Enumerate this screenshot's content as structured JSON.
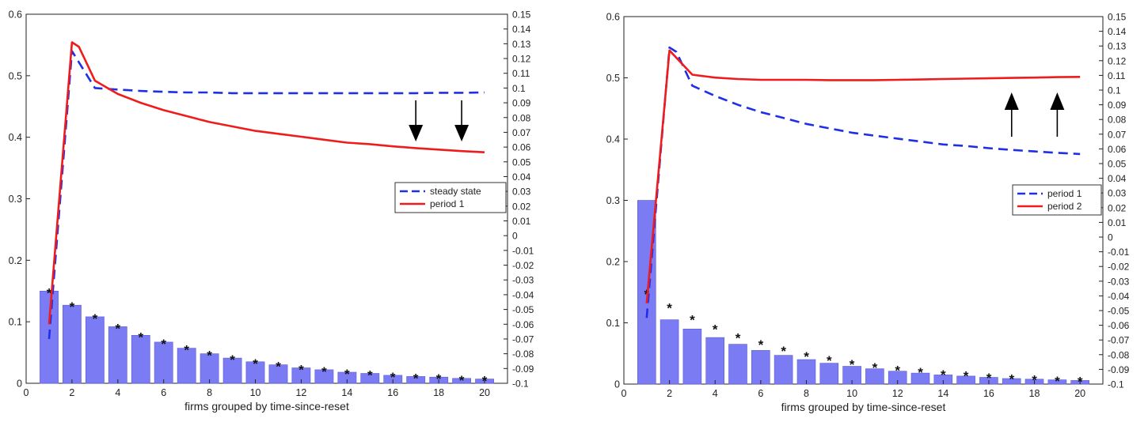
{
  "chart_data": [
    {
      "type": "bar",
      "xlabel": "firms grouped by time-since-reset",
      "xlim": [
        0,
        21
      ],
      "xticks": [
        0,
        2,
        4,
        6,
        8,
        10,
        12,
        14,
        16,
        18,
        20
      ],
      "ylim": [
        0,
        0.6
      ],
      "yticks": [
        0,
        0.1,
        0.2,
        0.3,
        0.4,
        0.5,
        0.6
      ],
      "y2lim": [
        -0.1,
        0.15
      ],
      "y2ticks": [
        -0.1,
        -0.09,
        -0.08,
        -0.07,
        -0.06,
        -0.05,
        -0.04,
        -0.03,
        -0.02,
        -0.01,
        0,
        0.01,
        0.02,
        0.03,
        0.04,
        0.05,
        0.06,
        0.07,
        0.08,
        0.09,
        0.1,
        0.11,
        0.12,
        0.13,
        0.14,
        0.15
      ],
      "bars": {
        "x": [
          1,
          2,
          3,
          4,
          5,
          6,
          7,
          8,
          9,
          10,
          11,
          12,
          13,
          14,
          15,
          16,
          17,
          18,
          19,
          20
        ],
        "values": [
          0.15,
          0.127,
          0.108,
          0.092,
          0.078,
          0.067,
          0.057,
          0.048,
          0.041,
          0.035,
          0.03,
          0.025,
          0.022,
          0.018,
          0.016,
          0.013,
          0.011,
          0.01,
          0.008,
          0.007
        ],
        "color": "#7b7cf4"
      },
      "markers": {
        "symbol": "*",
        "x": [
          1,
          2,
          3,
          4,
          5,
          6,
          7,
          8,
          9,
          10,
          11,
          12,
          13,
          14,
          15,
          16,
          17,
          18,
          19,
          20
        ],
        "values": [
          0.15,
          0.127,
          0.108,
          0.092,
          0.078,
          0.067,
          0.057,
          0.048,
          0.041,
          0.035,
          0.03,
          0.025,
          0.022,
          0.018,
          0.016,
          0.013,
          0.011,
          0.01,
          0.008,
          0.007
        ]
      },
      "series": [
        {
          "name": "steady state",
          "axis": "right",
          "style": "dashed",
          "color": "#1f2fe6",
          "x": [
            1,
            2,
            3,
            4,
            5,
            6,
            7,
            8,
            9,
            10,
            11,
            12,
            13,
            14,
            15,
            16,
            17,
            18,
            19,
            20
          ],
          "values": [
            -0.07,
            0.125,
            0.1,
            0.099,
            0.098,
            0.0975,
            0.097,
            0.097,
            0.0965,
            0.0965,
            0.0965,
            0.0965,
            0.0965,
            0.0965,
            0.0965,
            0.0965,
            0.0965,
            0.0968,
            0.0968,
            0.097
          ]
        },
        {
          "name": "period 1",
          "axis": "right",
          "style": "solid",
          "color": "#ee1c1c",
          "x": [
            1,
            2,
            2.3,
            3,
            4,
            5,
            6,
            7,
            8,
            9,
            10,
            11,
            12,
            13,
            14,
            15,
            16,
            17,
            18,
            19,
            20
          ],
          "values": [
            -0.06,
            0.131,
            0.128,
            0.105,
            0.096,
            0.09,
            0.085,
            0.081,
            0.077,
            0.074,
            0.071,
            0.069,
            0.067,
            0.065,
            0.063,
            0.062,
            0.0605,
            0.0593,
            0.0583,
            0.0573,
            0.0565
          ]
        }
      ],
      "legend": {
        "position": "center-right"
      },
      "annotations": {
        "arrows": [
          {
            "x": 17,
            "direction": "down"
          },
          {
            "x": 19,
            "direction": "down"
          }
        ]
      }
    },
    {
      "type": "bar",
      "xlabel": "firms grouped by time-since-reset",
      "xlim": [
        0,
        21
      ],
      "xticks": [
        0,
        2,
        4,
        6,
        8,
        10,
        12,
        14,
        16,
        18,
        20
      ],
      "ylim": [
        0,
        0.6
      ],
      "yticks": [
        0,
        0.1,
        0.2,
        0.3,
        0.4,
        0.5,
        0.6
      ],
      "y2lim": [
        -0.1,
        0.15
      ],
      "y2ticks": [
        -0.1,
        -0.09,
        -0.08,
        -0.07,
        -0.06,
        -0.05,
        -0.04,
        -0.03,
        -0.02,
        -0.01,
        0,
        0.01,
        0.02,
        0.03,
        0.04,
        0.05,
        0.06,
        0.07,
        0.08,
        0.09,
        0.1,
        0.11,
        0.12,
        0.13,
        0.14,
        0.15
      ],
      "bars": {
        "x": [
          1,
          2,
          3,
          4,
          5,
          6,
          7,
          8,
          9,
          10,
          11,
          12,
          13,
          14,
          15,
          16,
          17,
          18,
          19,
          20
        ],
        "values": [
          0.3,
          0.105,
          0.09,
          0.076,
          0.065,
          0.055,
          0.047,
          0.04,
          0.034,
          0.029,
          0.025,
          0.021,
          0.018,
          0.015,
          0.013,
          0.011,
          0.009,
          0.008,
          0.007,
          0.006
        ],
        "color": "#7b7cf4"
      },
      "markers": {
        "symbol": "*",
        "x": [
          1,
          2,
          3,
          4,
          5,
          6,
          7,
          8,
          9,
          10,
          11,
          12,
          13,
          14,
          15,
          16,
          17,
          18,
          19,
          20
        ],
        "values": [
          0.15,
          0.127,
          0.108,
          0.092,
          0.078,
          0.067,
          0.057,
          0.048,
          0.041,
          0.035,
          0.03,
          0.025,
          0.022,
          0.018,
          0.016,
          0.013,
          0.011,
          0.01,
          0.008,
          0.007
        ]
      },
      "series": [
        {
          "name": "period 1",
          "axis": "right",
          "style": "dashed",
          "color": "#1f2fe6",
          "x": [
            1,
            2,
            2.3,
            3,
            4,
            5,
            6,
            7,
            8,
            9,
            10,
            11,
            12,
            13,
            14,
            15,
            16,
            17,
            18,
            19,
            20
          ],
          "values": [
            -0.055,
            0.129,
            0.126,
            0.103,
            0.096,
            0.09,
            0.085,
            0.081,
            0.077,
            0.074,
            0.071,
            0.069,
            0.067,
            0.065,
            0.063,
            0.062,
            0.0605,
            0.0593,
            0.0583,
            0.0573,
            0.0565
          ]
        },
        {
          "name": "period 2",
          "axis": "right",
          "style": "solid",
          "color": "#ee1c1c",
          "x": [
            1,
            2,
            3,
            4,
            5,
            6,
            7,
            8,
            9,
            10,
            11,
            12,
            13,
            14,
            15,
            16,
            17,
            18,
            19,
            20
          ],
          "values": [
            -0.045,
            0.127,
            0.1105,
            0.1085,
            0.1075,
            0.107,
            0.107,
            0.107,
            0.1068,
            0.1068,
            0.1068,
            0.107,
            0.1072,
            0.1075,
            0.1078,
            0.108,
            0.1083,
            0.1085,
            0.1088,
            0.109
          ]
        }
      ],
      "legend": {
        "position": "center-right"
      },
      "annotations": {
        "arrows": [
          {
            "x": 17,
            "direction": "up"
          },
          {
            "x": 19,
            "direction": "up"
          }
        ]
      }
    }
  ]
}
